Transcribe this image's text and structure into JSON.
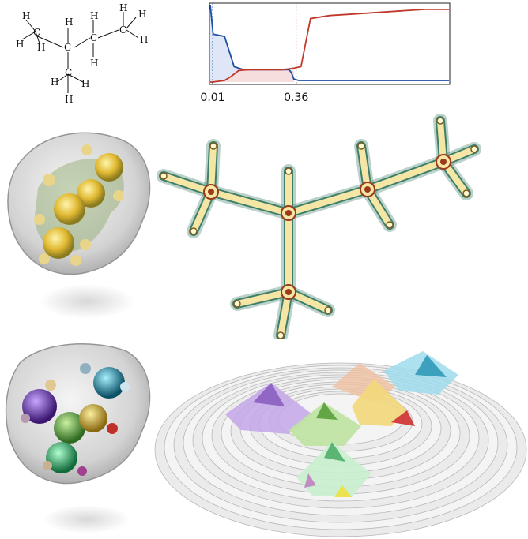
{
  "structure": {
    "atoms": [
      {
        "id": "c1",
        "sym": "C"
      },
      {
        "id": "c2",
        "sym": "C"
      },
      {
        "id": "c3",
        "sym": "C"
      },
      {
        "id": "c4",
        "sym": "C"
      },
      {
        "id": "c5",
        "sym": "C"
      },
      {
        "id": "h1",
        "sym": "H"
      },
      {
        "id": "h2",
        "sym": "H"
      },
      {
        "id": "h3",
        "sym": "H"
      },
      {
        "id": "h4",
        "sym": "H"
      },
      {
        "id": "h5",
        "sym": "H"
      },
      {
        "id": "h6",
        "sym": "H"
      },
      {
        "id": "h7",
        "sym": "H"
      },
      {
        "id": "h8",
        "sym": "H"
      },
      {
        "id": "h9",
        "sym": "H"
      },
      {
        "id": "h10",
        "sym": "H"
      },
      {
        "id": "h11",
        "sym": "H"
      },
      {
        "id": "h12",
        "sym": "H"
      }
    ]
  },
  "chart_data": {
    "type": "line",
    "title": "",
    "xlabel": "",
    "ylabel": "",
    "xlim": [
      0,
      1
    ],
    "ylim": [
      0,
      1
    ],
    "tick_labels": [
      "0.01",
      "0.36"
    ],
    "tick_values": [
      0.01,
      0.36
    ],
    "series": [
      {
        "color": "#1f4fa3",
        "x": [
          0,
          0.012,
          0.012,
          0.06,
          0.1,
          0.12,
          0.14,
          0.3,
          0.33,
          0.34,
          0.35,
          0.37,
          0.38,
          0.4,
          1.0
        ],
        "y": [
          1.0,
          0.62,
          0.62,
          0.59,
          0.2,
          0.18,
          0.16,
          0.16,
          0.16,
          0.12,
          0.04,
          0.02,
          0.02,
          0.02,
          0.02
        ]
      },
      {
        "color": "#c0392b",
        "x": [
          0,
          0.01,
          0.06,
          0.09,
          0.12,
          0.16,
          0.3,
          0.33,
          0.35,
          0.38,
          0.42,
          0.5,
          0.6,
          0.7,
          0.8,
          0.9,
          1.0
        ],
        "y": [
          0.0,
          0.0,
          0.02,
          0.08,
          0.15,
          0.16,
          0.16,
          0.17,
          0.18,
          0.2,
          0.82,
          0.86,
          0.88,
          0.9,
          0.92,
          0.94,
          0.94
        ]
      }
    ]
  },
  "colors": {
    "blue": "#1f4fa3",
    "red": "#c0392b",
    "graph_fill": "#f5e6a6",
    "graph_edge": "#3f7f6a",
    "atom_ring": "#9b3a1a"
  }
}
